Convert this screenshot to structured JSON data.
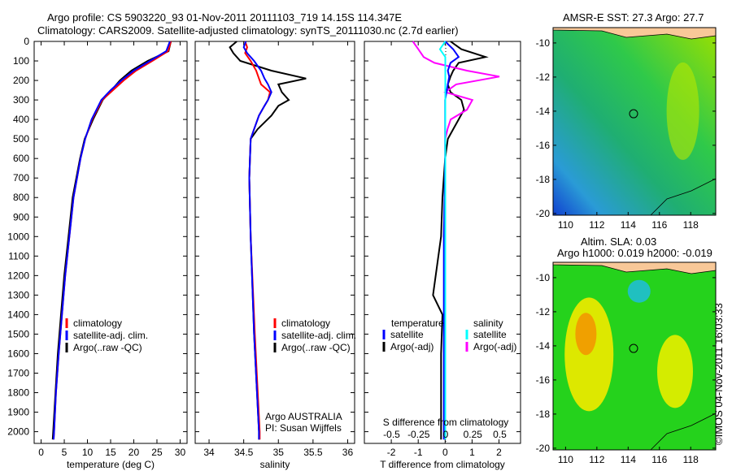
{
  "title_line1": "Argo profile: CS 5903220_93 01-Nov-2011 20111103_719 14.15S 114.347E",
  "title_line2": "Climatology: CARS2009. Satellite-adjusted climatology: synTS_20111030.nc (2.7d earlier)",
  "colors": {
    "clim": "#ff0000",
    "sat": "#0000ff",
    "argo": "#000000",
    "sat_s": "#00ffff",
    "argo_s": "#ff00ff"
  },
  "chart_data": [
    {
      "type": "line",
      "name": "temperature",
      "xlabel": "temperature (deg C)",
      "xlim": [
        -1.5,
        31.5
      ],
      "ylim": [
        0,
        2060
      ],
      "xticks": [
        0,
        5,
        10,
        15,
        20,
        25,
        30
      ],
      "yticks": [
        0,
        100,
        200,
        300,
        400,
        500,
        600,
        700,
        800,
        900,
        1000,
        1100,
        1200,
        1300,
        1400,
        1500,
        1600,
        1700,
        1800,
        1900,
        2000
      ],
      "legend": [
        "climatology",
        "satellite-adj. clim.",
        "Argo(..raw -QC)"
      ],
      "depth": [
        0,
        50,
        100,
        150,
        200,
        250,
        300,
        400,
        500,
        600,
        800,
        1000,
        1200,
        1400,
        1600,
        1800,
        2000,
        2040
      ],
      "series": [
        {
          "name": "climatology",
          "values": [
            28,
            27.4,
            24,
            20.5,
            17.8,
            15.5,
            13.2,
            11,
            9.5,
            8.5,
            7,
            6.1,
            5.2,
            4.5,
            3.8,
            3.2,
            2.8,
            2.7
          ]
        },
        {
          "name": "satellite-adj. clim.",
          "values": [
            27.8,
            27,
            23.5,
            20,
            17.3,
            15,
            13,
            10.9,
            9.5,
            8.5,
            7,
            6.1,
            5.2,
            4.5,
            3.8,
            3.2,
            2.8,
            2.7
          ]
        },
        {
          "name": "Argo(..raw -QC)",
          "values": [
            28,
            27.5,
            23,
            19.5,
            17,
            15.2,
            13.3,
            11.2,
            9.4,
            8.4,
            6.8,
            5.9,
            5,
            4.3,
            3.6,
            3.1,
            2.6,
            2.5
          ]
        }
      ]
    },
    {
      "type": "line",
      "name": "salinity",
      "xlabel": "salinity",
      "xlim": [
        33.8,
        36.1
      ],
      "ylim": [
        0,
        2060
      ],
      "xticks": [
        34,
        34.5,
        35,
        35.5,
        36
      ],
      "legend": [
        "climatology",
        "satellite-adj. clim.",
        "Argo(..raw -QC)"
      ],
      "annotation": [
        "Argo AUSTRALIA",
        "PI: Susan Wijffels"
      ],
      "depth": [
        0,
        30,
        60,
        100,
        150,
        190,
        220,
        260,
        300,
        330,
        380,
        450,
        500,
        700,
        1000,
        1500,
        2000,
        2040
      ],
      "series": [
        {
          "name": "climatology",
          "values": [
            34.52,
            34.55,
            34.52,
            34.6,
            34.68,
            34.72,
            34.75,
            34.88,
            34.85,
            34.8,
            34.72,
            34.65,
            34.6,
            34.58,
            34.6,
            34.66,
            34.73,
            34.73
          ]
        },
        {
          "name": "satellite-adj. clim.",
          "values": [
            34.53,
            34.5,
            34.55,
            34.65,
            34.75,
            34.8,
            34.85,
            34.9,
            34.85,
            34.8,
            34.72,
            34.65,
            34.6,
            34.58,
            34.6,
            34.65,
            34.72,
            34.72
          ]
        },
        {
          "name": "Argo(..raw -QC)",
          "values": [
            34.4,
            34.3,
            34.35,
            34.45,
            34.9,
            35.4,
            35.0,
            35.05,
            35.15,
            35.0,
            34.9,
            34.7,
            34.6,
            34.58,
            34.6,
            34.65,
            34.72,
            34.72
          ]
        }
      ]
    },
    {
      "type": "line",
      "name": "difference",
      "xlabel": "T difference from climatology",
      "xlabel2": "S difference from climatology",
      "xlim": [
        -3,
        2.8
      ],
      "ylim": [
        0,
        2060
      ],
      "xticks": [
        -2,
        -1,
        0,
        1,
        2
      ],
      "xticks2": [
        -0.5,
        -0.25,
        0,
        0.25,
        0.5
      ],
      "legend": {
        "temperature": [
          "satellite",
          "Argo(-adj)"
        ],
        "salinity": [
          "satellite",
          "Argo(-adj)"
        ],
        "heading_t": "temperature",
        "heading_s": "salinity"
      },
      "depth": [
        0,
        40,
        80,
        110,
        150,
        180,
        220,
        260,
        300,
        350,
        400,
        450,
        500,
        600,
        800,
        1000,
        1300,
        1400,
        1600,
        2000,
        2040
      ],
      "series": [
        {
          "name": "T satellite",
          "values": [
            0,
            0.3,
            0.5,
            0.2,
            0.1,
            0.15,
            0.1,
            0.05,
            0,
            0,
            0,
            0,
            0,
            0,
            -0.02,
            -0.05,
            -0.05,
            -0.05,
            -0.05,
            -0.05,
            -0.05
          ]
        },
        {
          "name": "T Argo(-adj)",
          "values": [
            0.2,
            0.6,
            1.5,
            0.5,
            0.3,
            0.2,
            0.1,
            0.2,
            0.6,
            0.7,
            0.5,
            0.3,
            0.1,
            0,
            -0.1,
            -0.15,
            -0.45,
            -0.1,
            -0.15,
            -0.15,
            -0.15
          ]
        },
        {
          "name": "S satellite",
          "values": [
            0,
            -0.05,
            0,
            0,
            0,
            0,
            0,
            0,
            0,
            0,
            0,
            0,
            0,
            0,
            0,
            0,
            0,
            0,
            0,
            0,
            0
          ]
        },
        {
          "name": "S Argo(-adj)",
          "values": [
            -0.3,
            -0.25,
            -0.2,
            -0.1,
            0.2,
            0.5,
            0.1,
            0,
            0.25,
            0.2,
            0.05,
            0.02,
            0,
            0,
            0,
            0,
            0,
            0,
            0,
            0,
            0
          ]
        }
      ]
    },
    {
      "type": "heatmap",
      "name": "AMSR-E SST",
      "title": "AMSR-E SST: 27.3 Argo: 27.7",
      "xticks": [
        110,
        112,
        114,
        116,
        118
      ],
      "yticks": [
        -10,
        -12,
        -14,
        -16,
        -18,
        -20
      ],
      "marker": [
        114.347,
        -14.15
      ]
    },
    {
      "type": "heatmap",
      "name": "Altim SLA",
      "title": "Altim. SLA: 0.03",
      "title2": "Argo h1000: 0.019 h2000: -0.019",
      "xticks": [
        110,
        112,
        114,
        116,
        118
      ],
      "yticks": [
        -10,
        -12,
        -14,
        -16,
        -18,
        -20
      ],
      "marker": [
        114.347,
        -14.15
      ]
    }
  ],
  "credit": "©IMOS 04-Nov-2011 16:03:33"
}
